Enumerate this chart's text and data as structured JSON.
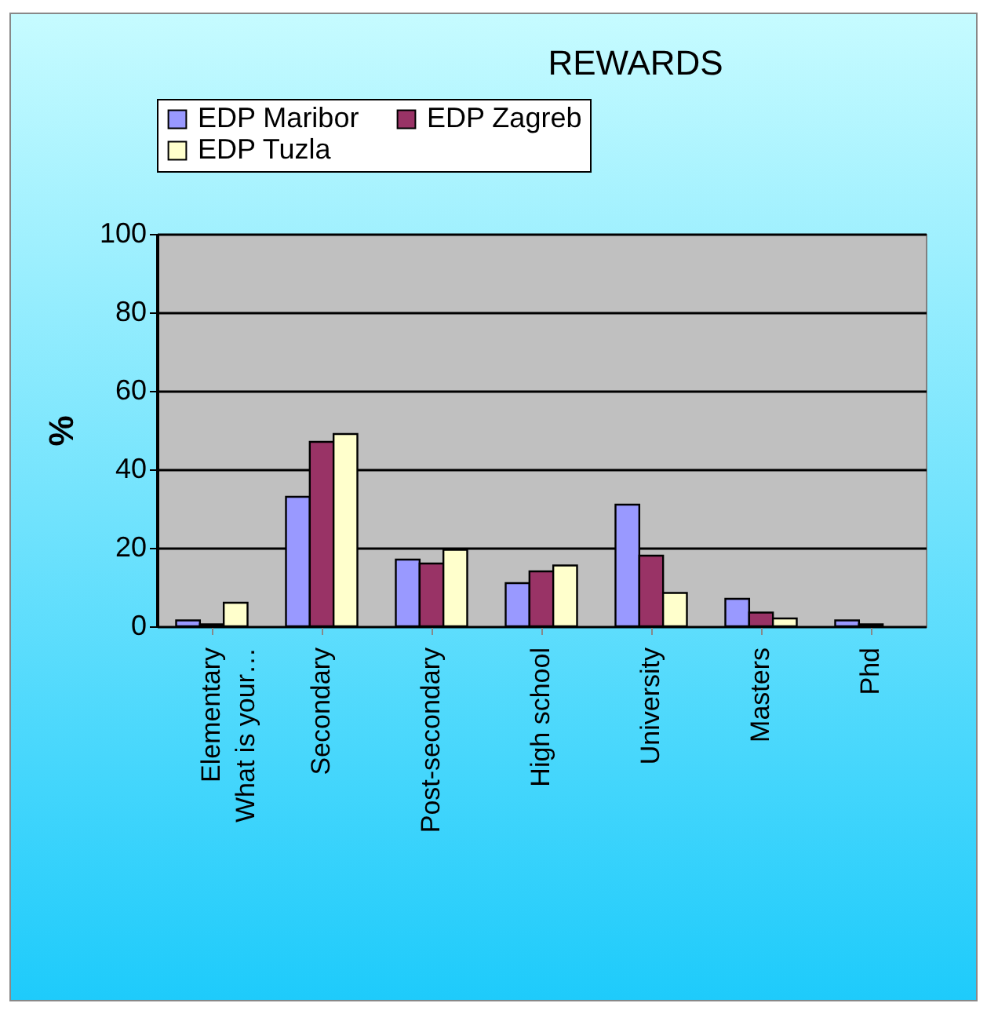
{
  "chart_data": {
    "type": "bar",
    "title": "REWARDS",
    "ylabel": "%",
    "categories": [
      "Elementary\nWhat is your…",
      "Secondary",
      "Post-secondary",
      "High school",
      "University",
      "Masters",
      "Phd"
    ],
    "series": [
      {
        "name": "EDP Maribor",
        "color": "#9999ff",
        "values": [
          1.5,
          33,
          17,
          11,
          31,
          7,
          1.5
        ]
      },
      {
        "name": "EDP Zagreb",
        "color": "#993366",
        "values": [
          0.5,
          47,
          16,
          14,
          18,
          3.5,
          0.5
        ]
      },
      {
        "name": "EDP Tuzla",
        "color": "#ffffcc",
        "values": [
          6,
          49,
          19.5,
          15.5,
          8.5,
          2,
          null
        ]
      }
    ],
    "ylim": [
      0,
      100
    ],
    "yticks": [
      0,
      20,
      40,
      60,
      80,
      100
    ],
    "grid": "y",
    "legend": "top"
  }
}
